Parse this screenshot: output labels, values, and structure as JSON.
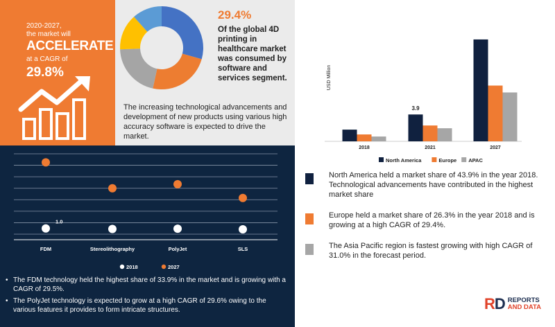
{
  "headline": {
    "period": "2020-2027,",
    "market_will": "the market will",
    "accelerate": "ACCELERATE",
    "cagr_label": "at a CAGR of",
    "cagr": "29.8%"
  },
  "pie_panel": {
    "percent": "29.4%",
    "statement": "Of the global 4D printing in healthcare market was consumed by software and services segment.",
    "paragraph": "The increasing technological advancements and development of new products using various high accuracy software is expected to drive the market."
  },
  "donut": {
    "colors": [
      "#4472c4",
      "#ed7d31",
      "#a5a5a5",
      "#ffc000",
      "#5b9bd5"
    ],
    "shares": [
      0.294,
      0.24,
      0.21,
      0.14,
      0.116
    ]
  },
  "tech_notes": [
    "The FDM technology held the highest share of 33.9% in the market and is growing with a CAGR of 29.5%.",
    "The PolyJet technology is expected to grow at a high CAGR of  29.6% owing to the various features it provides to form intricate structures."
  ],
  "region_notes": [
    {
      "text": "North America held a market share of 43.9% in the year 2018. Technological advancements have contributed in the highest market share",
      "color": "#10213f"
    },
    {
      "text": "Europe held a market share of 26.3% in the year 2018 and is growing at a high CAGR of 29.4%.",
      "color": "#ef7b32"
    },
    {
      "text": " The Asia Pacific region is fastest growing with high CAGR of 31.0%  in the forecast period.",
      "color": "#a6a6a6"
    }
  ],
  "logo": {
    "mark_a": "R",
    "mark_b": "D",
    "line1": "REPORTS",
    "line2": "AND DATA"
  },
  "chart_data": [
    {
      "type": "scatter",
      "categories": [
        "FDM",
        "Stereolithography",
        "PolyJet",
        "SLS"
      ],
      "series": [
        {
          "name": "2018",
          "color": "#ffffff",
          "values": [
            1.0,
            0.9,
            0.95,
            0.85
          ]
        },
        {
          "name": "2027",
          "color": "#ef7b32",
          "values": [
            12.5,
            8.0,
            8.7,
            6.3
          ]
        }
      ],
      "annotations": [
        {
          "category": "FDM",
          "series": "2018",
          "text": "1.0"
        }
      ],
      "ylim": [
        0,
        14
      ],
      "grid": true,
      "legend": "bottom"
    },
    {
      "type": "bar",
      "categories": [
        "2018",
        "2021",
        "2027"
      ],
      "series": [
        {
          "name": "North America",
          "color": "#10213f",
          "values": [
            1.7,
            3.9,
            14.8
          ]
        },
        {
          "name": "Europe",
          "color": "#ef7b32",
          "values": [
            1.0,
            2.3,
            8.1
          ]
        },
        {
          "name": "APAC",
          "color": "#a6a6a6",
          "values": [
            0.7,
            1.9,
            7.1
          ]
        }
      ],
      "annotations": [
        {
          "category": "2021",
          "series": "North America",
          "text": "3.9"
        }
      ],
      "ylabel": "USD Million",
      "ylim": [
        0,
        16
      ],
      "legend": "bottom"
    }
  ]
}
